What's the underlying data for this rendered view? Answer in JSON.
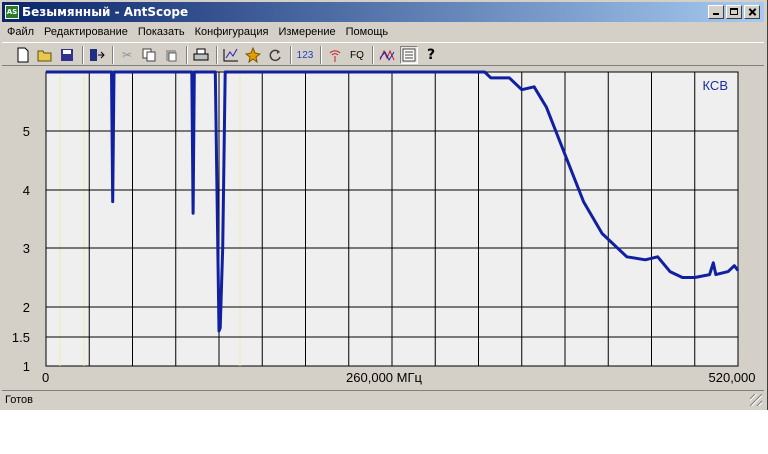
{
  "window": {
    "title": "Безымянный - AntScope"
  },
  "menu": [
    "Файл",
    "Редактирование",
    "Показать",
    "Конфигурация",
    "Измерение",
    "Помощь"
  ],
  "toolbar": {
    "fq_label": "FQ",
    "num_label": "123"
  },
  "status": {
    "text": "Готов"
  },
  "colors": {
    "curve": "#1020a0",
    "titlebar": "#0a246a",
    "grid": "#000000",
    "plot_bg": "#efefef"
  },
  "chart_data": {
    "type": "line",
    "series_label": "КСВ",
    "x_ticks": [
      "0",
      "260,000 МГц",
      "520,000"
    ],
    "y_ticks": [
      "5",
      "4",
      "3",
      "2",
      "1.5",
      "1"
    ],
    "x_range_mhz": [
      0,
      520
    ],
    "y_scale": "log-like (VSWR)",
    "grid": true,
    "points": [
      [
        0,
        6.0
      ],
      [
        50,
        6.0
      ],
      [
        53,
        6.0
      ],
      [
        54,
        3.8
      ],
      [
        55,
        6.0
      ],
      [
        118,
        6.0
      ],
      [
        119,
        3.6
      ],
      [
        120,
        6.0
      ],
      [
        137,
        6.0
      ],
      [
        140,
        1.6
      ],
      [
        141,
        1.65
      ],
      [
        143,
        3.0
      ],
      [
        145,
        6.0
      ],
      [
        355,
        6.0
      ],
      [
        360,
        5.9
      ],
      [
        375,
        5.9
      ],
      [
        385,
        5.7
      ],
      [
        395,
        5.75
      ],
      [
        405,
        5.4
      ],
      [
        420,
        4.6
      ],
      [
        435,
        3.8
      ],
      [
        450,
        3.25
      ],
      [
        470,
        2.85
      ],
      [
        485,
        2.8
      ],
      [
        495,
        2.85
      ],
      [
        505,
        2.6
      ],
      [
        515,
        2.5
      ],
      [
        525,
        2.5
      ],
      [
        537,
        2.55
      ],
      [
        540,
        2.75
      ],
      [
        542,
        2.55
      ],
      [
        552,
        2.6
      ],
      [
        557,
        2.7
      ],
      [
        560,
        2.62
      ]
    ]
  }
}
